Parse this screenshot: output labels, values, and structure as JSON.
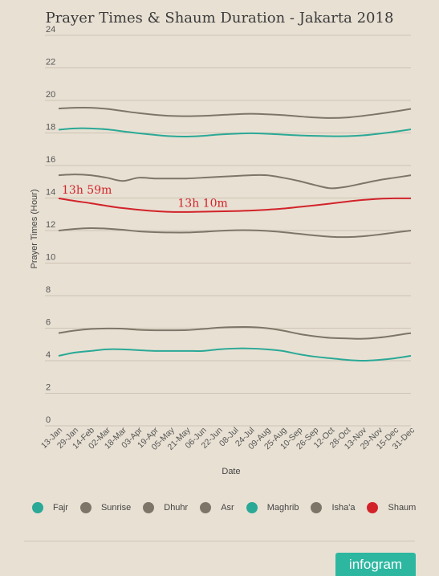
{
  "chart_data": {
    "type": "line",
    "title": "Prayer Times & Shaum Duration - Jakarta 2018",
    "xlabel": "Date",
    "ylabel": "Prayer Times (Hour)",
    "ylim": [
      0,
      24
    ],
    "yticks": [
      0,
      2,
      4,
      6,
      8,
      10,
      12,
      14,
      16,
      18,
      20,
      22,
      24
    ],
    "grid": true,
    "legend_position": "bottom",
    "categories": [
      "13-Jan",
      "29-Jan",
      "14-Feb",
      "02-Mar",
      "18-Mar",
      "03-Apr",
      "19-Apr",
      "05-May",
      "21-May",
      "06-Jun",
      "22-Jun",
      "08-Jul",
      "24-Jul",
      "09-Aug",
      "25-Aug",
      "10-Sep",
      "26-Sep",
      "12-Oct",
      "28-Oct",
      "13-Nov",
      "29-Nov",
      "15-Dec",
      "31-Dec"
    ],
    "series": [
      {
        "name": "Fajr",
        "color": "#2aa996",
        "values": [
          4.3,
          4.5,
          4.6,
          4.7,
          4.7,
          4.65,
          4.6,
          4.6,
          4.6,
          4.6,
          4.7,
          4.75,
          4.75,
          4.7,
          4.6,
          4.4,
          4.25,
          4.15,
          4.05,
          4.0,
          4.05,
          4.15,
          4.3
        ]
      },
      {
        "name": "Sunrise",
        "color": "#7d7668",
        "values": [
          5.7,
          5.85,
          5.95,
          5.98,
          5.97,
          5.9,
          5.87,
          5.87,
          5.88,
          5.95,
          6.03,
          6.07,
          6.07,
          6.0,
          5.85,
          5.65,
          5.5,
          5.4,
          5.37,
          5.35,
          5.42,
          5.55,
          5.7
        ]
      },
      {
        "name": "Dhuhr",
        "color": "#7d7668",
        "values": [
          12.0,
          12.1,
          12.15,
          12.12,
          12.05,
          11.95,
          11.9,
          11.88,
          11.88,
          11.92,
          11.98,
          12.02,
          12.02,
          11.98,
          11.9,
          11.8,
          11.7,
          11.62,
          11.6,
          11.65,
          11.75,
          11.88,
          12.0
        ]
      },
      {
        "name": "Asr",
        "color": "#7d7668",
        "values": [
          15.4,
          15.45,
          15.4,
          15.25,
          15.05,
          15.25,
          15.2,
          15.2,
          15.2,
          15.25,
          15.3,
          15.35,
          15.4,
          15.4,
          15.25,
          15.05,
          14.8,
          14.6,
          14.7,
          14.9,
          15.1,
          15.25,
          15.4
        ]
      },
      {
        "name": "Maghrib",
        "color": "#2aa996",
        "values": [
          18.2,
          18.28,
          18.28,
          18.22,
          18.1,
          17.98,
          17.88,
          17.8,
          17.78,
          17.82,
          17.9,
          17.95,
          17.98,
          17.95,
          17.9,
          17.85,
          17.82,
          17.8,
          17.8,
          17.85,
          17.95,
          18.08,
          18.22
        ]
      },
      {
        "name": "Isha'a",
        "color": "#7d7668",
        "values": [
          19.5,
          19.55,
          19.55,
          19.48,
          19.35,
          19.22,
          19.12,
          19.05,
          19.03,
          19.05,
          19.1,
          19.15,
          19.18,
          19.15,
          19.1,
          19.02,
          18.95,
          18.92,
          18.95,
          19.05,
          19.18,
          19.32,
          19.48
        ]
      },
      {
        "name": "Shaum",
        "color": "#d2232a",
        "values": [
          13.98,
          13.82,
          13.68,
          13.52,
          13.38,
          13.28,
          13.2,
          13.15,
          13.14,
          13.16,
          13.18,
          13.2,
          13.23,
          13.28,
          13.35,
          13.45,
          13.55,
          13.66,
          13.78,
          13.88,
          13.95,
          13.98,
          13.98
        ]
      }
    ],
    "annotations": [
      {
        "text": "13h 59m",
        "x": "13-Jan",
        "y": 13.98
      },
      {
        "text": "13h 10m",
        "x": "06-Jun",
        "y": 13.16
      }
    ]
  },
  "footer": {
    "brand": "infogram"
  }
}
